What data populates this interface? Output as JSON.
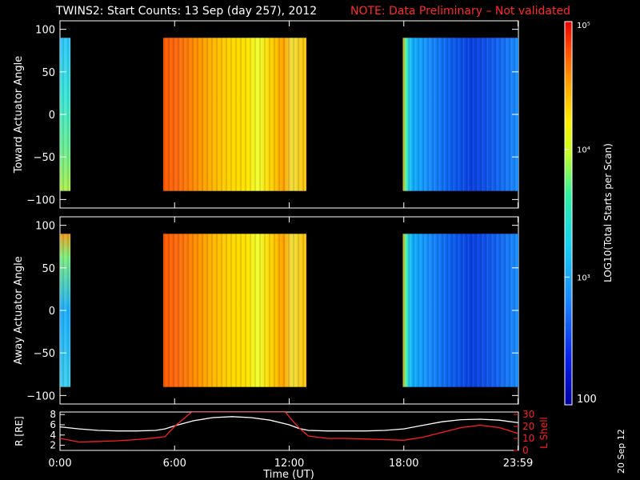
{
  "title": "TWINS2: Start Counts: 13 Sep (day 257), 2012",
  "note": "NOTE: Data Preliminary – Not validated",
  "date_stamp": "20 Sep 12",
  "colors": {
    "note": "#ff2a2a",
    "axes": "#ffffff",
    "background": "#000000",
    "l_shell": "#ff2020",
    "r_curve": "#ffffff"
  },
  "colorbar": {
    "label": "LOG10(Total Starts per Scan)",
    "tick_labels": [
      "100",
      "10³",
      "10⁴",
      "10⁵"
    ],
    "tick_values": [
      100,
      1000,
      10000,
      100000
    ],
    "scale": "log"
  },
  "chart_data": [
    {
      "type": "heatmap",
      "panel": "toward",
      "ylabel": "Toward Actuator Angle",
      "yticks": [
        -100,
        -50,
        0,
        50,
        100
      ],
      "ylim": [
        -110,
        110
      ],
      "xlim_hours": [
        0,
        24
      ],
      "data_range_deg": [
        -90,
        90
      ],
      "coverage_hours": [
        [
          0.0,
          0.55
        ],
        [
          5.4,
          12.9
        ],
        [
          17.95,
          24.0
        ]
      ],
      "segments": [
        {
          "start": "0:00",
          "end": "0:33",
          "level": "mid"
        },
        {
          "start": "5:24",
          "end": "12:54",
          "level": "high"
        },
        {
          "start": "17:57",
          "end": "23:59",
          "level": "low"
        }
      ]
    },
    {
      "type": "heatmap",
      "panel": "away",
      "ylabel": "Away Actuator Angle",
      "yticks": [
        -100,
        -50,
        0,
        50,
        100
      ],
      "ylim": [
        -110,
        110
      ],
      "xlim_hours": [
        0,
        24
      ],
      "data_range_deg": [
        -90,
        90
      ],
      "coverage_hours": [
        [
          0.0,
          0.55
        ],
        [
          5.4,
          12.9
        ],
        [
          17.95,
          24.0
        ]
      ],
      "segments": [
        {
          "start": "0:00",
          "end": "0:33",
          "level": "mid"
        },
        {
          "start": "5:24",
          "end": "12:54",
          "level": "high"
        },
        {
          "start": "17:57",
          "end": "23:59",
          "level": "low"
        }
      ]
    },
    {
      "type": "line",
      "panel": "orbit",
      "ylabel": "R [RE]",
      "y2label": "L Shell",
      "xlabel": "Time (UT)",
      "xticks": [
        "0:00",
        "6:00",
        "12:00",
        "18:00",
        "23:59"
      ],
      "xtick_hours": [
        0,
        6,
        12,
        18,
        23.98
      ],
      "yticks": [
        2,
        4,
        6,
        8
      ],
      "ylim": [
        1,
        8.5
      ],
      "y2ticks": [
        0,
        10,
        20,
        30
      ],
      "y2lim": [
        0,
        32
      ],
      "series": [
        {
          "name": "R",
          "axis": "left",
          "x": [
            0,
            1,
            2,
            3,
            4,
            5,
            5.5,
            6,
            7,
            8,
            9,
            10,
            11,
            12,
            12.5,
            13,
            14,
            15,
            16,
            17,
            18,
            19,
            20,
            21,
            22,
            23,
            24
          ],
          "y": [
            5.6,
            5.2,
            4.9,
            4.8,
            4.8,
            4.9,
            5.2,
            5.8,
            6.8,
            7.4,
            7.6,
            7.4,
            6.9,
            6.0,
            5.3,
            4.9,
            4.8,
            4.8,
            4.8,
            4.9,
            5.2,
            5.9,
            6.6,
            7.0,
            7.1,
            6.9,
            6.4
          ]
        },
        {
          "name": "L Shell",
          "axis": "right",
          "x": [
            0,
            1,
            2,
            3,
            4,
            5,
            5.5,
            6,
            6.9,
            11.8,
            12,
            12.5,
            13,
            14,
            15,
            16,
            17,
            18,
            19,
            20,
            21,
            22,
            23,
            24
          ],
          "y": [
            10,
            7,
            7.5,
            8,
            9,
            10.5,
            11.5,
            20,
            32,
            32,
            28,
            19,
            12,
            10,
            10,
            9.5,
            9,
            8.5,
            11,
            15,
            19,
            21,
            19,
            14
          ]
        }
      ]
    }
  ]
}
